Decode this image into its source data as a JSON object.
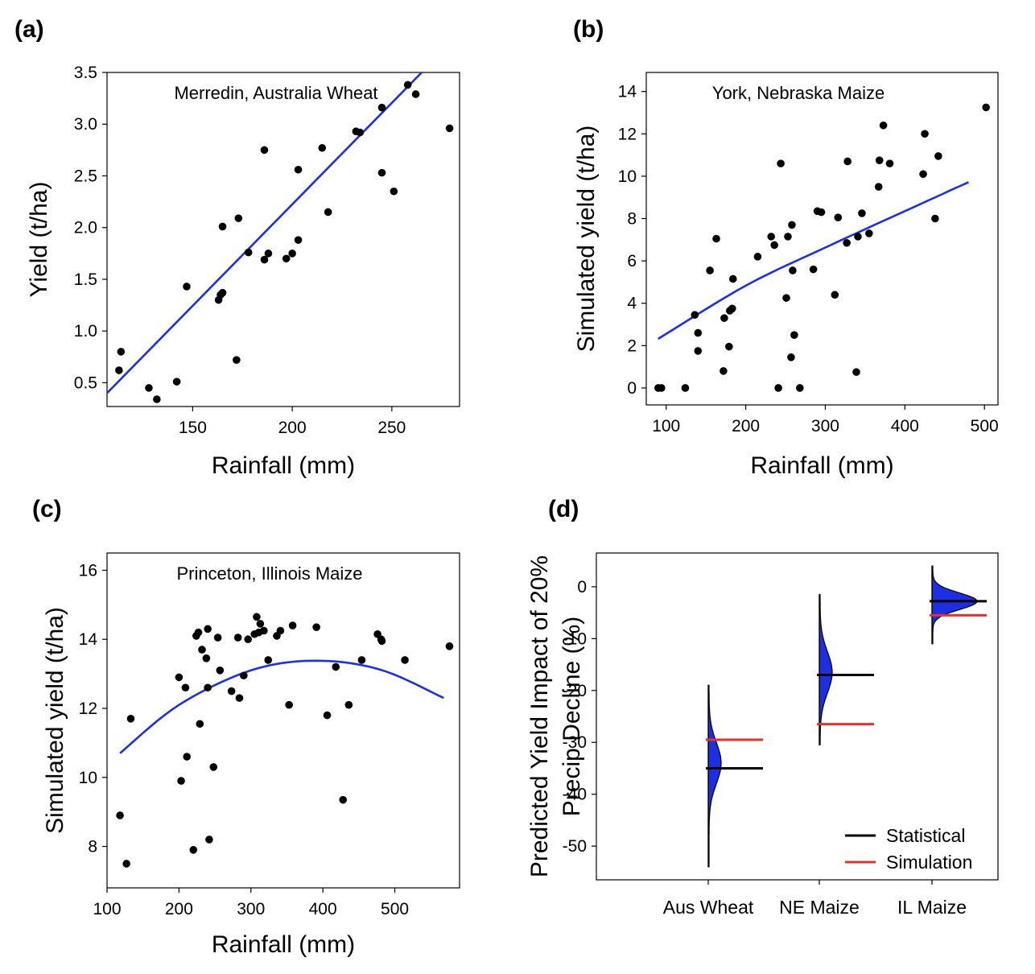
{
  "chart_data": [
    {
      "panel": "(a)",
      "type": "scatter",
      "annotation": "Merredin, Australia Wheat",
      "xlabel": "Rainfall (mm)",
      "ylabel": "Yield (t/ha)",
      "xlim": [
        107,
        284
      ],
      "ylim": [
        0.27,
        3.5
      ],
      "xticks": [
        150,
        200,
        250
      ],
      "yticks": [
        0.5,
        1.0,
        1.5,
        2.0,
        2.5,
        3.0,
        3.5
      ],
      "ytick_decimals": 1,
      "points": [
        [
          113,
          0.62
        ],
        [
          114,
          0.8
        ],
        [
          128,
          0.45
        ],
        [
          132,
          0.34
        ],
        [
          142,
          0.51
        ],
        [
          147,
          1.43
        ],
        [
          163,
          1.3
        ],
        [
          164,
          1.35
        ],
        [
          165,
          1.37
        ],
        [
          165,
          2.01
        ],
        [
          172,
          0.72
        ],
        [
          173,
          2.09
        ],
        [
          178,
          1.76
        ],
        [
          186,
          2.75
        ],
        [
          186,
          1.69
        ],
        [
          188,
          1.75
        ],
        [
          197,
          1.7
        ],
        [
          200,
          1.75
        ],
        [
          203,
          1.88
        ],
        [
          203,
          2.56
        ],
        [
          215,
          2.77
        ],
        [
          218,
          2.15
        ],
        [
          232,
          2.93
        ],
        [
          234,
          2.92
        ],
        [
          245,
          3.16
        ],
        [
          245,
          2.53
        ],
        [
          251,
          2.35
        ],
        [
          258,
          3.38
        ],
        [
          262,
          3.29
        ],
        [
          279,
          2.96
        ]
      ],
      "fit": {
        "type": "line",
        "color": "#1c2fe3",
        "x": [
          107,
          265
        ],
        "y": [
          0.4,
          3.5
        ]
      }
    },
    {
      "panel": "(b)",
      "type": "scatter",
      "annotation": "York, Nebraska Maize",
      "xlabel": "Rainfall (mm)",
      "ylabel": "Simulated yield (t/ha)",
      "xlim": [
        75,
        517
      ],
      "ylim": [
        -0.8,
        14.9
      ],
      "xticks": [
        100,
        200,
        300,
        400,
        500
      ],
      "yticks": [
        0,
        2,
        4,
        6,
        8,
        10,
        12,
        14
      ],
      "ytick_decimals": 0,
      "points": [
        [
          90,
          0.0
        ],
        [
          94,
          0.0
        ],
        [
          124,
          0.0
        ],
        [
          136,
          3.45
        ],
        [
          140,
          2.6
        ],
        [
          140,
          1.75
        ],
        [
          155,
          5.55
        ],
        [
          163,
          7.05
        ],
        [
          172,
          0.8
        ],
        [
          173,
          3.3
        ],
        [
          179,
          1.95
        ],
        [
          180,
          3.65
        ],
        [
          183,
          3.75
        ],
        [
          184,
          5.15
        ],
        [
          215,
          6.2
        ],
        [
          232,
          7.15
        ],
        [
          236,
          6.75
        ],
        [
          241,
          0.0
        ],
        [
          244,
          10.6
        ],
        [
          251,
          4.25
        ],
        [
          253,
          7.15
        ],
        [
          257,
          1.45
        ],
        [
          258,
          7.7
        ],
        [
          259,
          5.55
        ],
        [
          261,
          2.5
        ],
        [
          268,
          0.0
        ],
        [
          285,
          5.6
        ],
        [
          290,
          8.35
        ],
        [
          295,
          8.3
        ],
        [
          312,
          4.4
        ],
        [
          316,
          8.05
        ],
        [
          327,
          6.85
        ],
        [
          328,
          10.7
        ],
        [
          341,
          7.15
        ],
        [
          346,
          8.25
        ],
        [
          339,
          0.75
        ],
        [
          355,
          7.3
        ],
        [
          367,
          9.5
        ],
        [
          368,
          10.75
        ],
        [
          373,
          12.4
        ],
        [
          381,
          10.6
        ],
        [
          423,
          10.1
        ],
        [
          425,
          12.0
        ],
        [
          438,
          8.0
        ],
        [
          442,
          10.95
        ],
        [
          502,
          13.25
        ]
      ],
      "fit": {
        "type": "curve",
        "color": "#1c2fe3",
        "x": [
          90,
          200,
          300,
          400,
          480
        ],
        "y": [
          2.32,
          4.83,
          6.63,
          8.35,
          9.72
        ]
      }
    },
    {
      "panel": "(c)",
      "type": "scatter",
      "annotation": "Princeton, Illinois Maize",
      "xlabel": "Rainfall (mm)",
      "ylabel": "Simulated yield (t/ha)",
      "xlim": [
        100,
        590
      ],
      "ylim": [
        6.8,
        16.5
      ],
      "xticks": [
        100,
        200,
        300,
        400,
        500
      ],
      "yticks": [
        8,
        10,
        12,
        14,
        16
      ],
      "ytick_decimals": 0,
      "points": [
        [
          118,
          8.9
        ],
        [
          127,
          7.5
        ],
        [
          133,
          11.7
        ],
        [
          200,
          12.9
        ],
        [
          203,
          9.9
        ],
        [
          209,
          12.6
        ],
        [
          211,
          10.6
        ],
        [
          220,
          7.9
        ],
        [
          224,
          14.1
        ],
        [
          227,
          14.2
        ],
        [
          229,
          11.55
        ],
        [
          232,
          13.7
        ],
        [
          238,
          13.45
        ],
        [
          240,
          14.3
        ],
        [
          240,
          12.6
        ],
        [
          242,
          8.2
        ],
        [
          248,
          10.3
        ],
        [
          254,
          14.05
        ],
        [
          257,
          13.1
        ],
        [
          273,
          12.5
        ],
        [
          282,
          14.05
        ],
        [
          284,
          12.3
        ],
        [
          290,
          12.95
        ],
        [
          296,
          14.0
        ],
        [
          305,
          14.15
        ],
        [
          308,
          14.65
        ],
        [
          311,
          14.2
        ],
        [
          313,
          14.45
        ],
        [
          318,
          14.25
        ],
        [
          324,
          13.4
        ],
        [
          336,
          14.1
        ],
        [
          341,
          14.25
        ],
        [
          353,
          12.1
        ],
        [
          358,
          14.4
        ],
        [
          391,
          14.35
        ],
        [
          406,
          11.8
        ],
        [
          418,
          13.2
        ],
        [
          428,
          9.35
        ],
        [
          436,
          12.1
        ],
        [
          454,
          13.4
        ],
        [
          476,
          14.15
        ],
        [
          481,
          14.0
        ],
        [
          482,
          13.95
        ],
        [
          514,
          13.4
        ],
        [
          576,
          13.8
        ]
      ],
      "fit": {
        "type": "curve",
        "color": "#1c2fe3",
        "x": [
          118,
          200,
          300,
          390,
          480,
          568
        ],
        "y": [
          10.7,
          12.1,
          13.1,
          13.38,
          13.12,
          12.3
        ]
      }
    },
    {
      "panel": "(d)",
      "type": "violin",
      "xlabel": "",
      "ylabel": "Predicted Yield Impact of 20% Precip Decline (%)",
      "ylabel_lines": [
        "Predicted Yield Impact of 20%",
        "Precip Decline (%)"
      ],
      "ylim": [
        -56.5,
        6.5
      ],
      "yticks": [
        0,
        -10,
        -20,
        -30,
        -40,
        -50
      ],
      "ytick_decimals": 0,
      "categories": [
        "Aus Wheat",
        "NE Maize",
        "IL Maize"
      ],
      "statistical": [
        -35.0,
        -17.0,
        -2.8
      ],
      "simulation": [
        -29.5,
        -26.5,
        -5.5
      ],
      "distribution_ranges": [
        [
          -54.0,
          -19.0
        ],
        [
          -30.5,
          -1.5
        ],
        [
          -11.0,
          4.0
        ]
      ],
      "distribution_modes": [
        -34.0,
        -16.5,
        -2.8
      ],
      "legend": [
        {
          "name": "Statistical",
          "color": "#000000"
        },
        {
          "name": "Simulation",
          "color": "#e8302a"
        }
      ],
      "legend_position": "bottom-right"
    }
  ]
}
